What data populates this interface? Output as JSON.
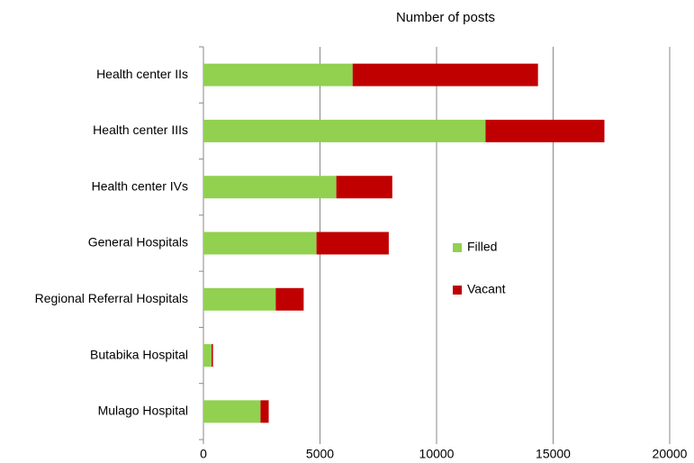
{
  "chart_data": {
    "type": "stacked-bar-horizontal",
    "title": "Number of posts",
    "categories": [
      "Health center IIs",
      "Health center IIIs",
      "Health center IVs",
      "General Hospitals",
      "Regional Referral Hospitals",
      "Butabika Hospital",
      "Mulago Hospital"
    ],
    "series": [
      {
        "name": "Filled",
        "color": "#92d050",
        "values": [
          6400,
          12100,
          5700,
          4850,
          3100,
          350,
          2450
        ]
      },
      {
        "name": "Vacant",
        "color": "#c00000",
        "values": [
          7950,
          5100,
          2400,
          3100,
          1200,
          60,
          350
        ]
      }
    ],
    "xlim": [
      0,
      20000
    ],
    "xticks": [
      0,
      5000,
      10000,
      15000,
      20000
    ],
    "grid": true,
    "legend": "center-right"
  }
}
